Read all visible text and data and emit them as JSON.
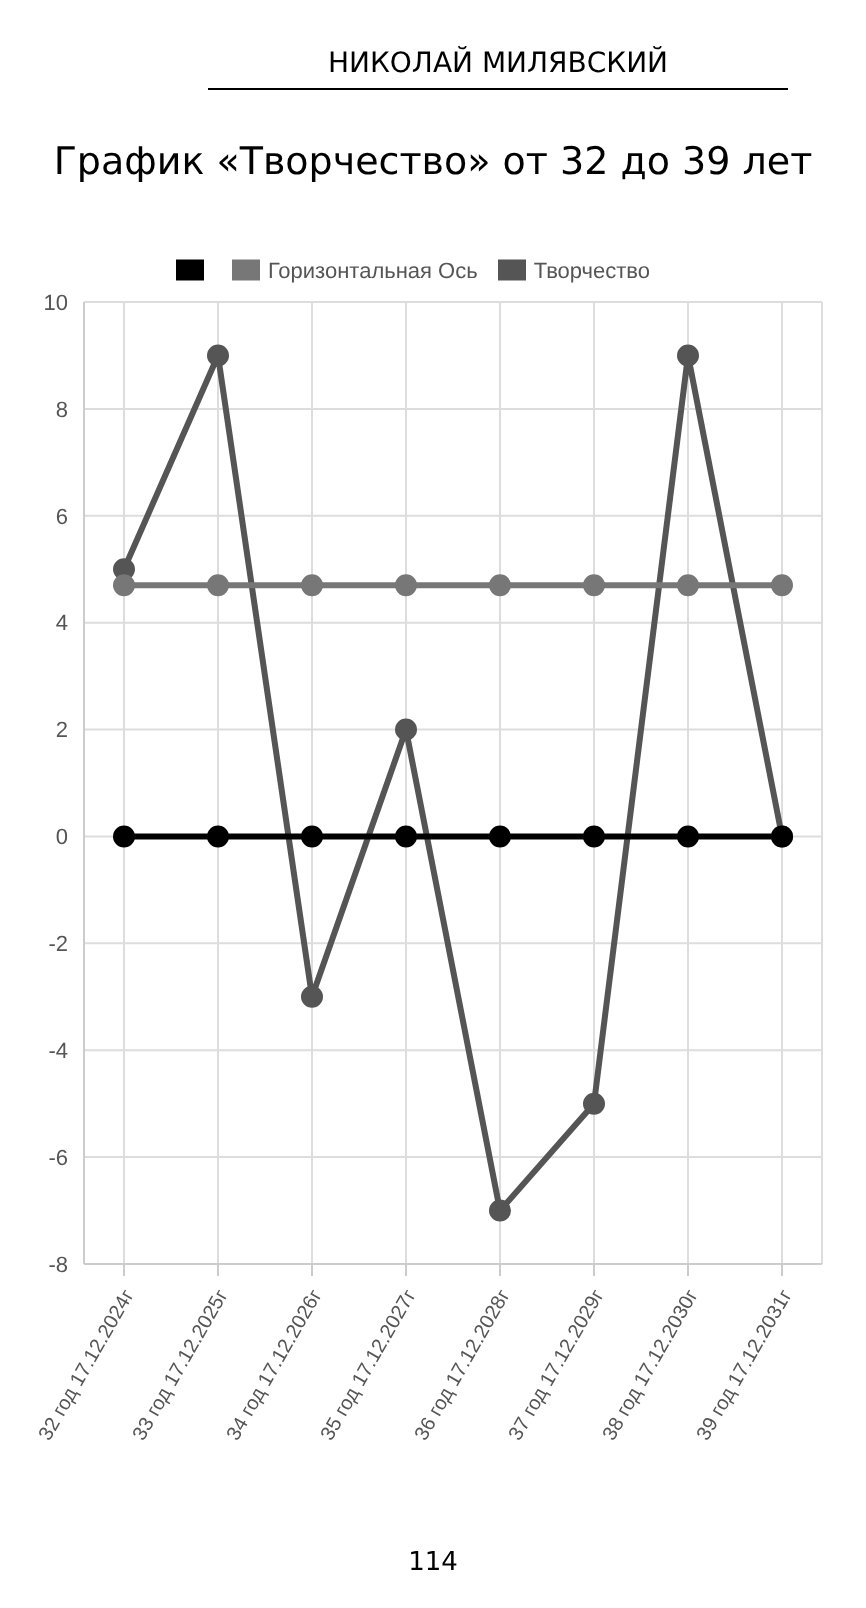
{
  "chart_data": {
    "type": "line",
    "title": "График «Творчество» от 32 до 39 лет",
    "categories": [
      "32 год 17.12.2024г",
      "33 год 17.12.2025г",
      "34 год 17.12.2026г",
      "35 год 17.12.2027г",
      "36 год 17.12.2028г",
      "37 год 17.12.2029г",
      "38 год 17.12.2030г",
      "39 год 17.12.2031г"
    ],
    "series": [
      {
        "name": "Творчество",
        "color": "#555555",
        "values": [
          5,
          9,
          -3,
          2,
          -7,
          -5,
          9,
          0
        ]
      },
      {
        "name": "Горизонтальная Ось",
        "color": "#777777",
        "values": [
          4.7,
          4.7,
          4.7,
          4.7,
          4.7,
          4.7,
          4.7,
          4.7
        ]
      },
      {
        "color": "#000000",
        "values": [
          0,
          0,
          0,
          0,
          0,
          0,
          0,
          0
        ]
      }
    ],
    "ylim": [
      -8,
      10
    ],
    "yticks": [
      10,
      8,
      6,
      4,
      2,
      0,
      -2,
      -4,
      -6,
      -8
    ],
    "grid": true,
    "legend": "top",
    "marker": "circle",
    "line_style": "solid",
    "annotations": [
      "НИКОЛАЙ МИЛЯВСКИЙ",
      "114"
    ]
  }
}
